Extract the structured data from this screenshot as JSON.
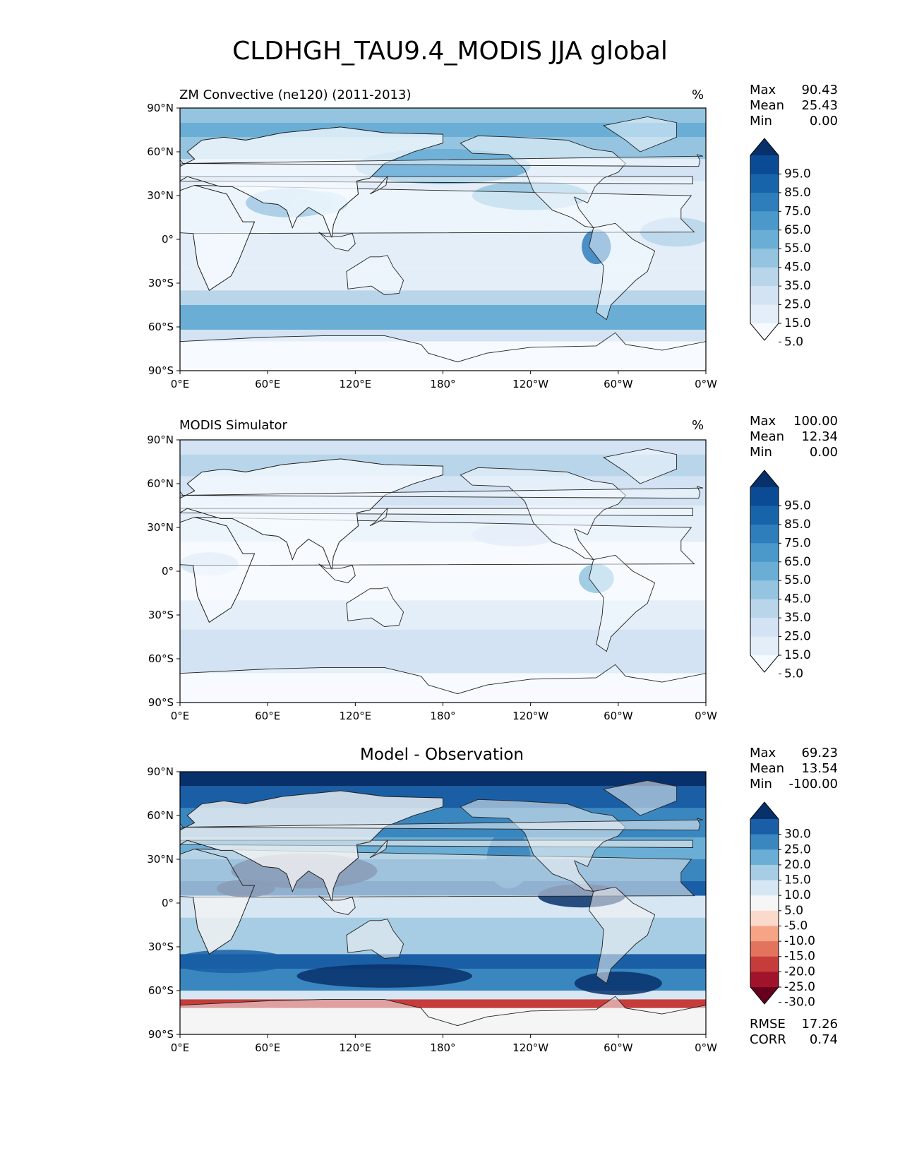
{
  "figure": {
    "title": "CLDHGH_TAU9.4_MODIS JJA global"
  },
  "axes": {
    "lat_ticks": [
      "90°N",
      "60°N",
      "30°N",
      "0°",
      "30°S",
      "60°S",
      "90°S"
    ],
    "lon_ticks": [
      "0°E",
      "60°E",
      "120°E",
      "180°",
      "120°W",
      "60°W",
      "0°W"
    ]
  },
  "panels": [
    {
      "title": "ZM Convective (ne120) (2011-2013)",
      "unit": "%",
      "stats": [
        {
          "k": "Max",
          "v": "90.43"
        },
        {
          "k": "Mean",
          "v": "25.43"
        },
        {
          "k": "Min",
          "v": "0.00"
        }
      ],
      "colorbar": {
        "labels": [
          "95.0",
          "85.0",
          "75.0",
          "65.0",
          "55.0",
          "45.0",
          "35.0",
          "25.0",
          "15.0",
          "5.0"
        ],
        "colors": [
          "#08306b",
          "#0b4a94",
          "#1764ab",
          "#2f7ebc",
          "#4b98ca",
          "#6aaed6",
          "#94c4df",
          "#b8d5ea",
          "#d3e3f3",
          "#e3eef8",
          "#f7fbff"
        ]
      }
    },
    {
      "title": "MODIS Simulator",
      "unit": "%",
      "stats": [
        {
          "k": "Max",
          "v": "100.00"
        },
        {
          "k": "Mean",
          "v": "12.34"
        },
        {
          "k": "Min",
          "v": "0.00"
        }
      ],
      "colorbar": {
        "labels": [
          "95.0",
          "85.0",
          "75.0",
          "65.0",
          "55.0",
          "45.0",
          "35.0",
          "25.0",
          "15.0",
          "5.0"
        ],
        "colors": [
          "#08306b",
          "#0b4a94",
          "#1764ab",
          "#2f7ebc",
          "#4b98ca",
          "#6aaed6",
          "#94c4df",
          "#b8d5ea",
          "#d3e3f3",
          "#e3eef8",
          "#f7fbff"
        ]
      }
    },
    {
      "title": "Model - Observation",
      "unit": "",
      "stats": [
        {
          "k": "Max",
          "v": "69.23"
        },
        {
          "k": "Mean",
          "v": "13.54"
        },
        {
          "k": "Min",
          "v": "-100.00"
        }
      ],
      "colorbar": {
        "labels": [
          "30.0",
          "25.0",
          "20.0",
          "15.0",
          "10.0",
          "5.0",
          "-5.0",
          "-10.0",
          "-15.0",
          "-20.0",
          "-25.0",
          "-30.0"
        ],
        "colors": [
          "#08306b",
          "#1a5fa6",
          "#3a87c0",
          "#6aaed6",
          "#a6cde3",
          "#d6e6f2",
          "#f6f6f6",
          "#fbdacb",
          "#f5a585",
          "#e2735c",
          "#c63c3a",
          "#a0132a",
          "#67001f"
        ]
      },
      "footer": [
        {
          "k": "RMSE",
          "v": "17.26"
        },
        {
          "k": "CORR",
          "v": "0.74"
        }
      ]
    }
  ],
  "chart_data": [
    {
      "type": "heatmap",
      "title": "ZM Convective (ne120) (2011-2013)",
      "units": "%",
      "xlabel": "",
      "ylabel": "",
      "xlim": [
        0,
        360
      ],
      "ylim": [
        -90,
        90
      ],
      "x_ticks": [
        "0°E",
        "60°E",
        "120°E",
        "180°",
        "120°W",
        "60°W",
        "0°W"
      ],
      "y_ticks": [
        "90°N",
        "60°N",
        "30°N",
        "0°",
        "30°S",
        "60°S",
        "90°S"
      ],
      "levels": [
        5,
        15,
        25,
        35,
        45,
        55,
        65,
        75,
        85,
        95
      ],
      "stats": {
        "max": 90.43,
        "mean": 25.43,
        "min": 0.0
      }
    },
    {
      "type": "heatmap",
      "title": "MODIS Simulator",
      "units": "%",
      "xlabel": "",
      "ylabel": "",
      "xlim": [
        0,
        360
      ],
      "ylim": [
        -90,
        90
      ],
      "x_ticks": [
        "0°E",
        "60°E",
        "120°E",
        "180°",
        "120°W",
        "60°W",
        "0°W"
      ],
      "y_ticks": [
        "90°N",
        "60°N",
        "30°N",
        "0°",
        "30°S",
        "60°S",
        "90°S"
      ],
      "levels": [
        5,
        15,
        25,
        35,
        45,
        55,
        65,
        75,
        85,
        95
      ],
      "stats": {
        "max": 100.0,
        "mean": 12.34,
        "min": 0.0
      }
    },
    {
      "type": "heatmap",
      "title": "Model - Observation",
      "units": "",
      "xlabel": "",
      "ylabel": "",
      "xlim": [
        0,
        360
      ],
      "ylim": [
        -90,
        90
      ],
      "x_ticks": [
        "0°E",
        "60°E",
        "120°E",
        "180°",
        "120°W",
        "60°W",
        "0°W"
      ],
      "y_ticks": [
        "90°N",
        "60°N",
        "30°N",
        "0°",
        "30°S",
        "60°S",
        "90°S"
      ],
      "levels": [
        -30,
        -25,
        -20,
        -15,
        -10,
        -5,
        5,
        10,
        15,
        20,
        25,
        30
      ],
      "stats": {
        "max": 69.23,
        "mean": 13.54,
        "min": -100.0,
        "rmse": 17.26,
        "corr": 0.74
      }
    }
  ]
}
